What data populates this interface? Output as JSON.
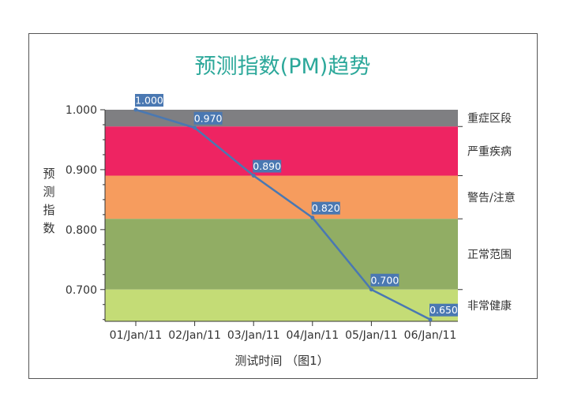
{
  "chart_data": {
    "type": "line",
    "title": "预测指数(PM)趋势",
    "xlabel": "测试时间 （图1）",
    "ylabel": "预测指数",
    "categories": [
      "01/Jan/11",
      "02/Jan/11",
      "03/Jan/11",
      "04/Jan/11",
      "05/Jan/11",
      "06/Jan/11"
    ],
    "values": [
      1.0,
      0.97,
      0.89,
      0.82,
      0.7,
      0.65
    ],
    "value_labels": [
      "1.000",
      "0.970",
      "0.890",
      "0.820",
      "0.700",
      "0.650"
    ],
    "ylim": [
      0.647,
      1.0
    ],
    "yticks": [
      0.7,
      0.8,
      0.9,
      1.0
    ],
    "ytick_labels": [
      "0.700",
      "0.800",
      "0.900",
      "1.000"
    ],
    "grid": false,
    "legend": "none",
    "bands": [
      {
        "label": "重症区段",
        "from": 0.972,
        "to": 1.0,
        "color": "#7f7f82"
      },
      {
        "label": "严重疾病",
        "from": 0.89,
        "to": 0.972,
        "color": "#ee2462"
      },
      {
        "label": "警告/注意",
        "from": 0.818,
        "to": 0.89,
        "color": "#f69c5e"
      },
      {
        "label": "正常范围",
        "from": 0.7,
        "to": 0.818,
        "color": "#91ad64"
      },
      {
        "label": "非常健康",
        "from": 0.647,
        "to": 0.7,
        "color": "#c4dc76"
      }
    ],
    "colors": {
      "title": "#2ca89a",
      "line": "#4a78b2",
      "label_bg": "#4a78b2",
      "label_text": "#ffffff"
    }
  }
}
